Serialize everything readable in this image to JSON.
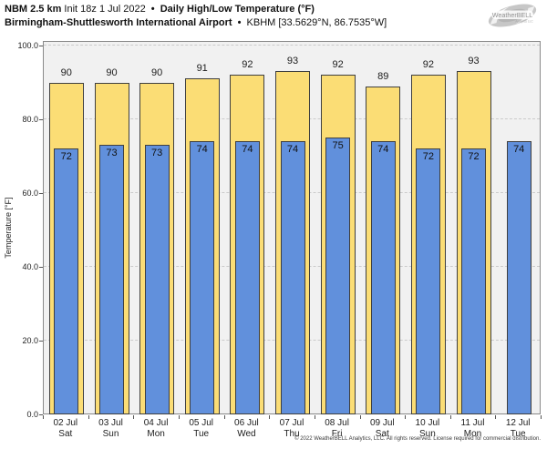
{
  "header": {
    "model": "NBM 2.5 km",
    "init": "Init 18z 1 Jul 2022",
    "sep": "•",
    "product": "Daily High/Low Temperature (°F)",
    "station": "Birmingham-Shuttlesworth International Airport",
    "station_id": "KBHM [33.5629°N, 86.7535°W]"
  },
  "logo": {
    "text": "WeatherBELL",
    "subtext": "Analytics LLC"
  },
  "chart_data": {
    "type": "bar",
    "title": "NBM 2.5 km Init 18z 1 Jul 2022 • Daily High/Low Temperature (°F)",
    "subtitle": "Birmingham-Shuttlesworth International Airport • KBHM [33.5629°N, 86.7535°W]",
    "ylabel": "Temperature [°F]",
    "xlabel": "",
    "ylim": [
      0,
      101.2
    ],
    "yticks": [
      0,
      20,
      40,
      60,
      80,
      100
    ],
    "ytick_labels": [
      "0.0",
      "20.0",
      "40.0",
      "60.0",
      "80.0",
      "100.0"
    ],
    "grid": "horizontal-dashed",
    "legend_position": "none",
    "categories_date": [
      "02 Jul",
      "03 Jul",
      "04 Jul",
      "05 Jul",
      "06 Jul",
      "07 Jul",
      "08 Jul",
      "09 Jul",
      "10 Jul",
      "11 Jul",
      "12 Jul"
    ],
    "categories_day": [
      "Sat",
      "Sun",
      "Mon",
      "Tue",
      "Wed",
      "Thu",
      "Fri",
      "Sat",
      "Sun",
      "Mon",
      "Tue"
    ],
    "series": [
      {
        "name": "Daily High",
        "color": "#fbdd75",
        "values": [
          90,
          90,
          90,
          91,
          92,
          93,
          92,
          89,
          92,
          93,
          null
        ]
      },
      {
        "name": "Daily Low",
        "color": "#6190dc",
        "values": [
          72,
          73,
          73,
          74,
          74,
          74,
          75,
          74,
          72,
          72,
          74
        ]
      }
    ]
  },
  "colors": {
    "high_bar": "#fbdd75",
    "low_bar": "#6190dc",
    "bar_border": "#3f3f3f",
    "plot_background": "#f1f1f1",
    "gridline": "#cbcbcb",
    "logo_gray": "#c3c3c3"
  },
  "footer": {
    "copyright": "© 2022 WeatherBELL Analytics, LLC. All rights reserved. License required for commercial distribution."
  }
}
